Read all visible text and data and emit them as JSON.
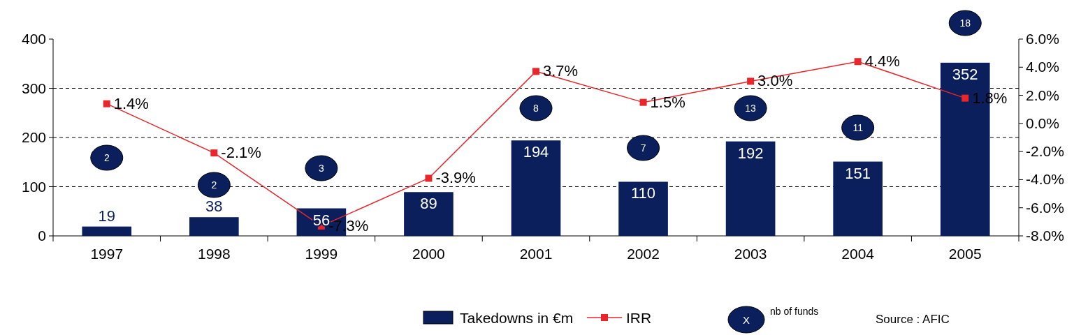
{
  "chart_data": {
    "type": "bar",
    "categories": [
      "1997",
      "1998",
      "1999",
      "2000",
      "2001",
      "2002",
      "2003",
      "2004",
      "2005"
    ],
    "series": [
      {
        "name": "Takedowns in €m",
        "color": "#0a1f5c",
        "values": [
          19,
          38,
          56,
          89,
          194,
          110,
          192,
          151,
          352
        ]
      },
      {
        "name": "IRR",
        "type": "line",
        "axis": "y2",
        "color": "#e8262b",
        "values": [
          1.4,
          -2.1,
          -7.3,
          -3.9,
          3.7,
          1.5,
          3.0,
          4.4,
          1.8
        ],
        "value_labels": [
          "1.4%",
          "-2.1%",
          "-7.3%",
          "-3.9%",
          "3.7%",
          "1.5%",
          "3.0%",
          "4.4%",
          "1.8%"
        ]
      }
    ],
    "data_labels": true,
    "ylim": [
      0,
      400
    ],
    "yticks": [
      0,
      100,
      200,
      300,
      400
    ],
    "y2lim": [
      -8,
      6
    ],
    "y2ticks": [
      {
        "value": -8,
        "label": "-8.0%"
      },
      {
        "value": -6,
        "label": "-6.0%"
      },
      {
        "value": -4,
        "label": "-4.0%"
      },
      {
        "value": -2,
        "label": "-2.0%"
      },
      {
        "value": 0,
        "label": "0.0%"
      },
      {
        "value": 2,
        "label": "2.0%"
      },
      {
        "value": 4,
        "label": "4.0%"
      },
      {
        "value": 6,
        "label": "6.0%"
      }
    ],
    "grid": "y",
    "line_style": "solid",
    "marker": "square",
    "legend": "bottom",
    "annotations": [
      "2",
      "2",
      "3",
      "8",
      "7",
      "13",
      "11",
      "18",
      "X",
      "nb of funds",
      "Source : AFIC"
    ]
  }
}
